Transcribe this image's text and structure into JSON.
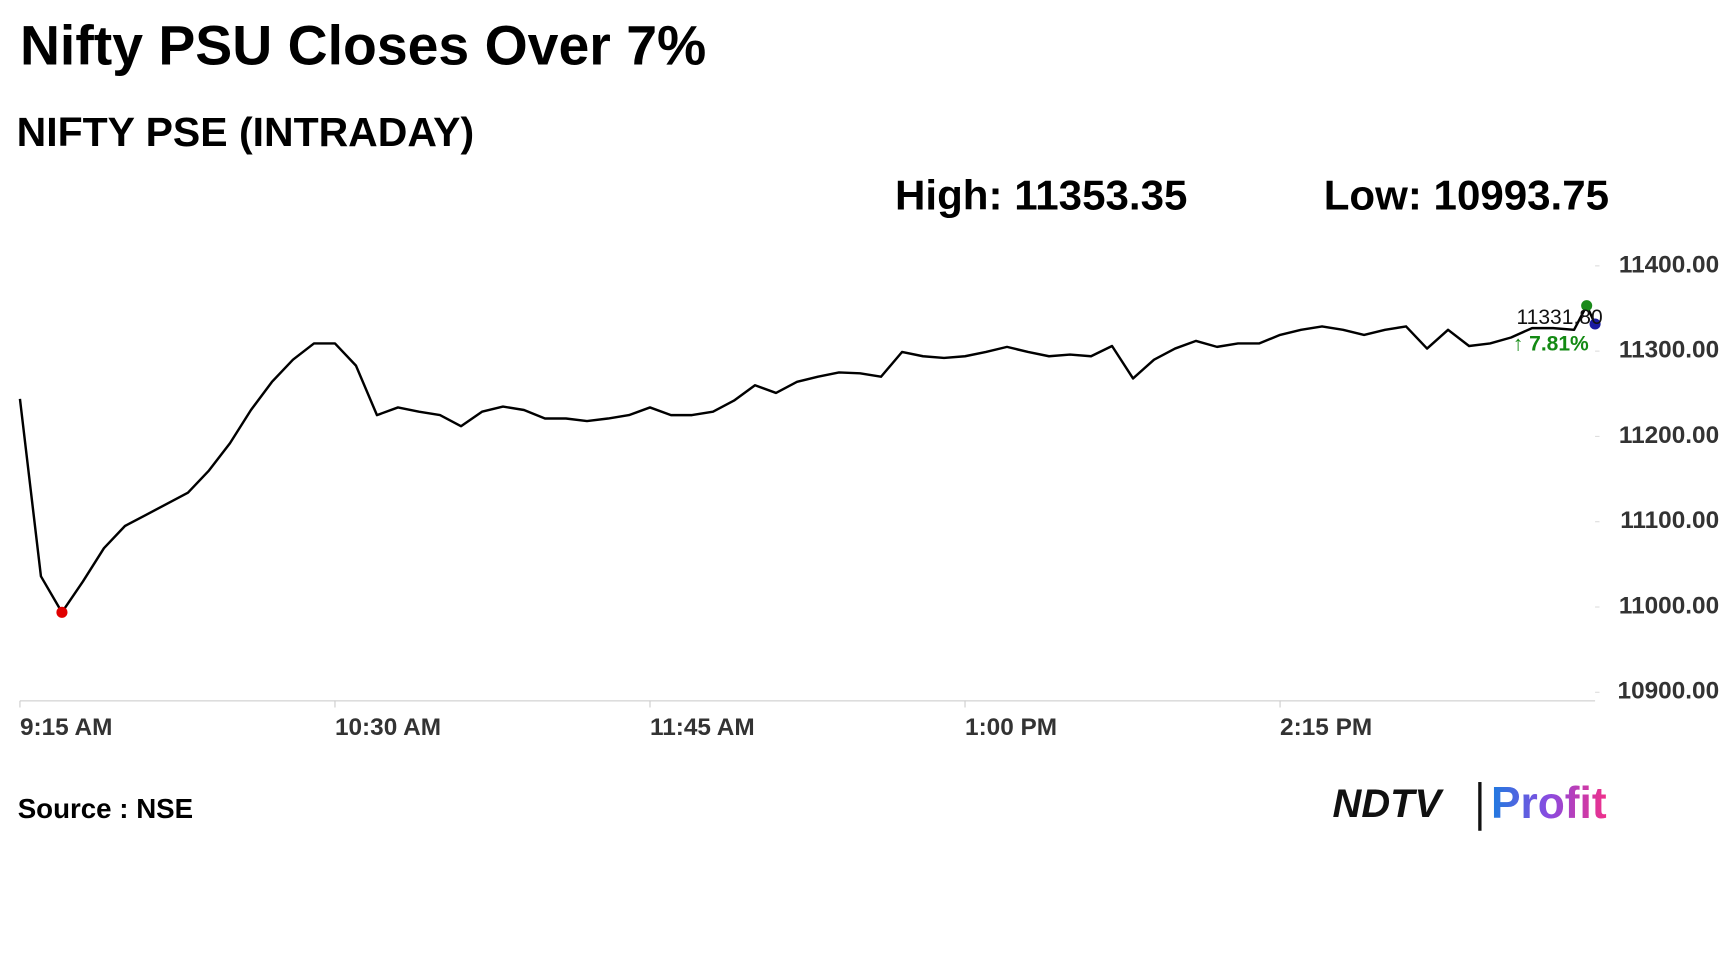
{
  "chart_data": {
    "type": "line",
    "title": "Nifty PSU Closes Over 7%",
    "subtitle": "NIFTY PSE (INTRADAY)",
    "high_label": "High:",
    "high": 11353.35,
    "low_label": "Low:",
    "low": 10993.75,
    "last_label": "11331.80",
    "change_label": "↑ 7.81%",
    "source": "Source : NSE",
    "logo": {
      "brand": "NDTV",
      "product": "Profit"
    },
    "color": "#000000",
    "x": [
      "9:15 AM",
      "9:20 AM",
      "9:25 AM",
      "9:30 AM",
      "9:35 AM",
      "9:40 AM",
      "9:45 AM",
      "9:50 AM",
      "9:55 AM",
      "10:00 AM",
      "10:05 AM",
      "10:10 AM",
      "10:15 AM",
      "10:20 AM",
      "10:25 AM",
      "10:30 AM",
      "10:35 AM",
      "10:40 AM",
      "10:45 AM",
      "10:50 AM",
      "10:55 AM",
      "11:00 AM",
      "11:05 AM",
      "11:10 AM",
      "11:15 AM",
      "11:20 AM",
      "11:25 AM",
      "11:30 AM",
      "11:35 AM",
      "11:40 AM",
      "11:45 AM",
      "11:50 AM",
      "11:55 AM",
      "12:00 PM",
      "12:05 PM",
      "12:10 PM",
      "12:15 PM",
      "12:20 PM",
      "12:25 PM",
      "12:30 PM",
      "12:35 PM",
      "12:40 PM",
      "12:45 PM",
      "12:50 PM",
      "12:55 PM",
      "1:00 PM",
      "1:05 PM",
      "1:10 PM",
      "1:15 PM",
      "1:20 PM",
      "1:25 PM",
      "1:30 PM",
      "1:35 PM",
      "1:40 PM",
      "1:45 PM",
      "1:50 PM",
      "1:55 PM",
      "2:00 PM",
      "2:05 PM",
      "2:10 PM",
      "2:15 PM",
      "2:20 PM",
      "2:25 PM",
      "2:30 PM",
      "2:35 PM",
      "2:40 PM",
      "2:45 PM",
      "2:50 PM",
      "2:55 PM",
      "3:00 PM",
      "3:05 PM",
      "3:10 PM",
      "3:15 PM",
      "3:20 PM",
      "3:25 PM",
      "3:28 PM",
      "3:30 PM"
    ],
    "values": [
      11244,
      11036,
      10993.75,
      11030,
      11069,
      11095,
      11108,
      11121,
      11134,
      11160,
      11192,
      11231,
      11264,
      11290,
      11309,
      11309,
      11283,
      11225,
      11234,
      11229,
      11225,
      11212,
      11229,
      11235,
      11231,
      11221,
      11221,
      11218,
      11221,
      11225,
      11234,
      11225,
      11225,
      11229,
      11242,
      11260,
      11251,
      11264,
      11270,
      11275,
      11274,
      11270,
      11299,
      11294,
      11292,
      11294,
      11299,
      11305,
      11299,
      11294,
      11296,
      11294,
      11306,
      11268,
      11290,
      11303,
      11312,
      11305,
      11309,
      11309,
      11319,
      11325,
      11329,
      11325,
      11319,
      11325,
      11329,
      11303,
      11325,
      11306,
      11309,
      11316,
      11327,
      11327,
      11325,
      11353.35,
      11331.8
    ],
    "xlim": [
      "9:15 AM",
      "3:30 PM"
    ],
    "xticks": [
      "9:15 AM",
      "10:30 AM",
      "11:45 AM",
      "1:00 PM",
      "2:15 PM"
    ],
    "ylim": [
      10890,
      11420
    ],
    "yticks": [
      {
        "value": 10900,
        "label": "10900.00"
      },
      {
        "value": 11000,
        "label": "11000.00"
      },
      {
        "value": 11100,
        "label": "11100.00"
      },
      {
        "value": 11200,
        "label": "11200.00"
      },
      {
        "value": 11300,
        "label": "11300.00"
      },
      {
        "value": 11400,
        "label": "11400.00"
      }
    ]
  }
}
